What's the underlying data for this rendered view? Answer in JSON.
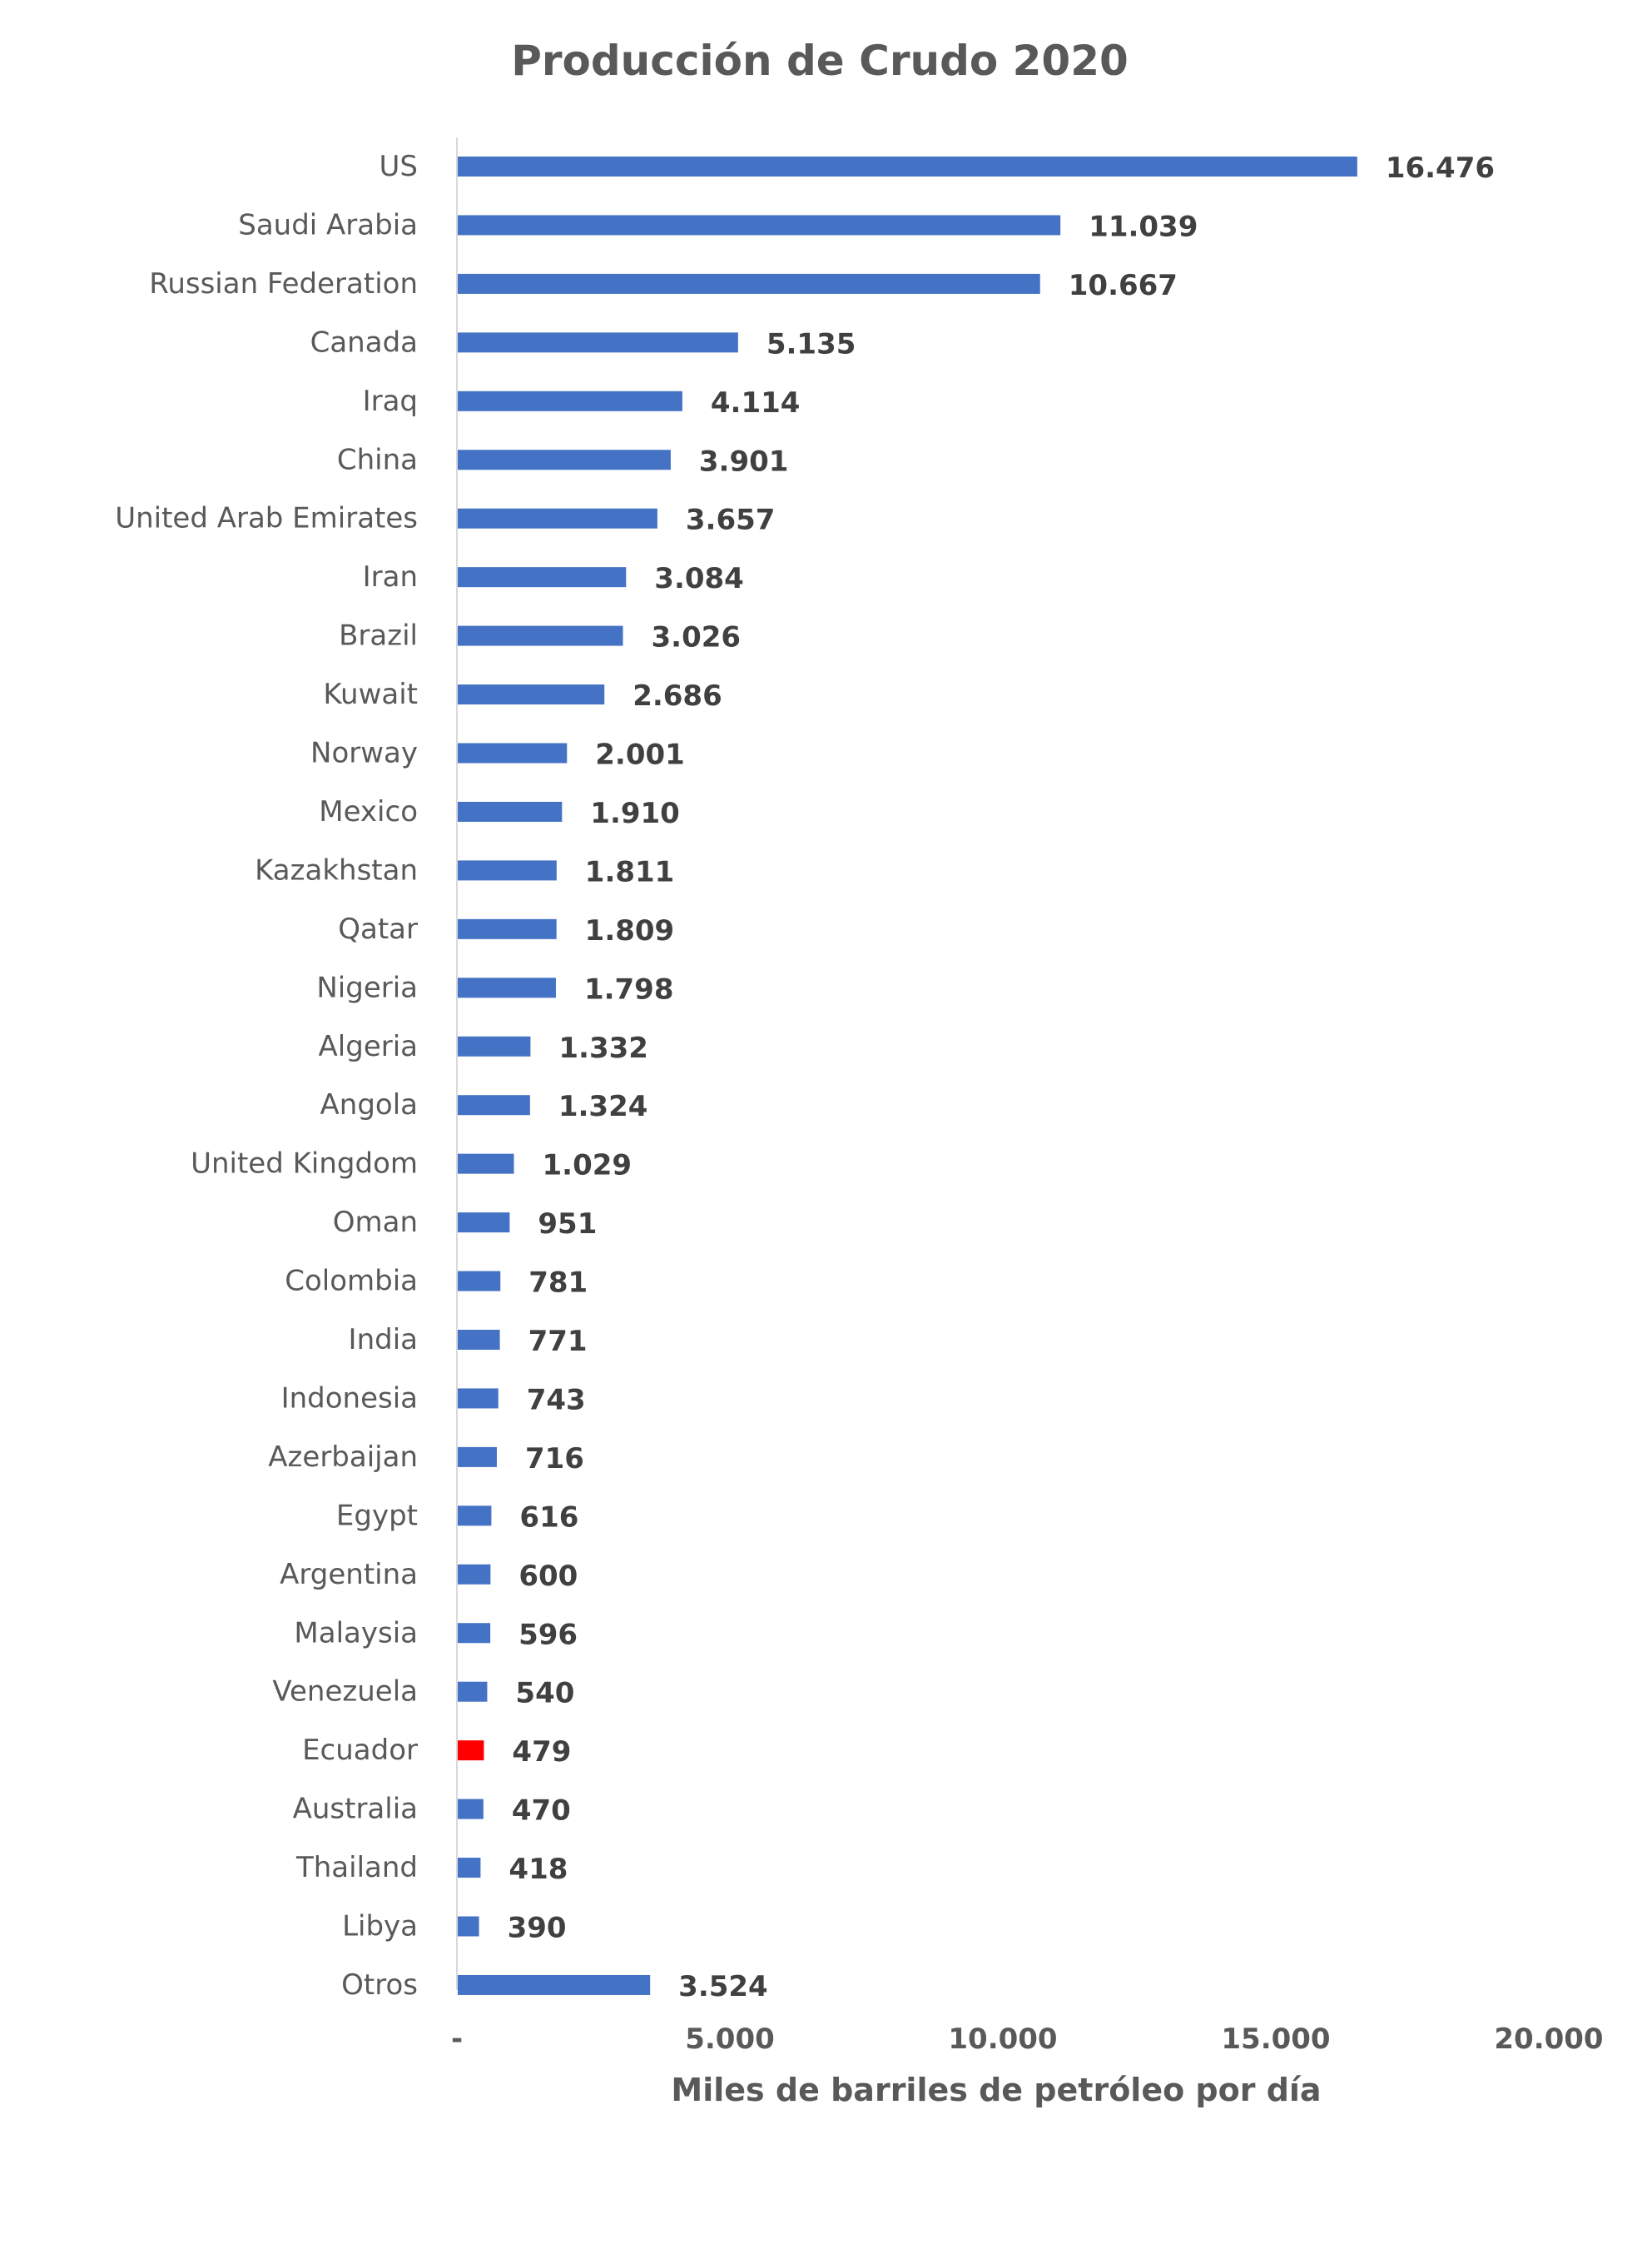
{
  "chart_data": {
    "type": "bar",
    "orientation": "horizontal",
    "title": "Producción de Crudo 2020",
    "xlabel": "Miles de barriles de petróleo por día",
    "ylabel": "",
    "xlim": [
      0,
      20000
    ],
    "xticks": [
      0,
      5000,
      10000,
      15000,
      20000
    ],
    "xtick_labels": [
      "-",
      "5.000",
      "10.000",
      "15.000",
      "20.000"
    ],
    "grid": false,
    "colors": {
      "default": "#4472C4",
      "highlight": "#FF0000"
    },
    "highlight_category": "Ecuador",
    "categories": [
      "US",
      "Saudi Arabia",
      "Russian Federation",
      "Canada",
      "Iraq",
      "China",
      "United Arab Emirates",
      "Iran",
      "Brazil",
      "Kuwait",
      "Norway",
      "Mexico",
      "Kazakhstan",
      "Qatar",
      "Nigeria",
      "Algeria",
      "Angola",
      "United Kingdom",
      "Oman",
      "Colombia",
      "India",
      "Indonesia",
      "Azerbaijan",
      "Egypt",
      "Argentina",
      "Malaysia",
      "Venezuela",
      "Ecuador",
      "Australia",
      "Thailand",
      "Libya",
      "Otros"
    ],
    "values": [
      16476,
      11039,
      10667,
      5135,
      4114,
      3901,
      3657,
      3084,
      3026,
      2686,
      2001,
      1910,
      1811,
      1809,
      1798,
      1332,
      1324,
      1029,
      951,
      781,
      771,
      743,
      716,
      616,
      600,
      596,
      540,
      479,
      470,
      418,
      390,
      3524
    ],
    "value_labels": [
      "16.476",
      "11.039",
      "10.667",
      "5.135",
      "4.114",
      "3.901",
      "3.657",
      "3.084",
      "3.026",
      "2.686",
      "2.001",
      "1.910",
      "1.811",
      "1.809",
      "1.798",
      "1.332",
      "1.324",
      "1.029",
      "951",
      "781",
      "771",
      "743",
      "716",
      "616",
      "600",
      "596",
      "540",
      "479",
      "470",
      "418",
      "390",
      "3.524"
    ]
  }
}
